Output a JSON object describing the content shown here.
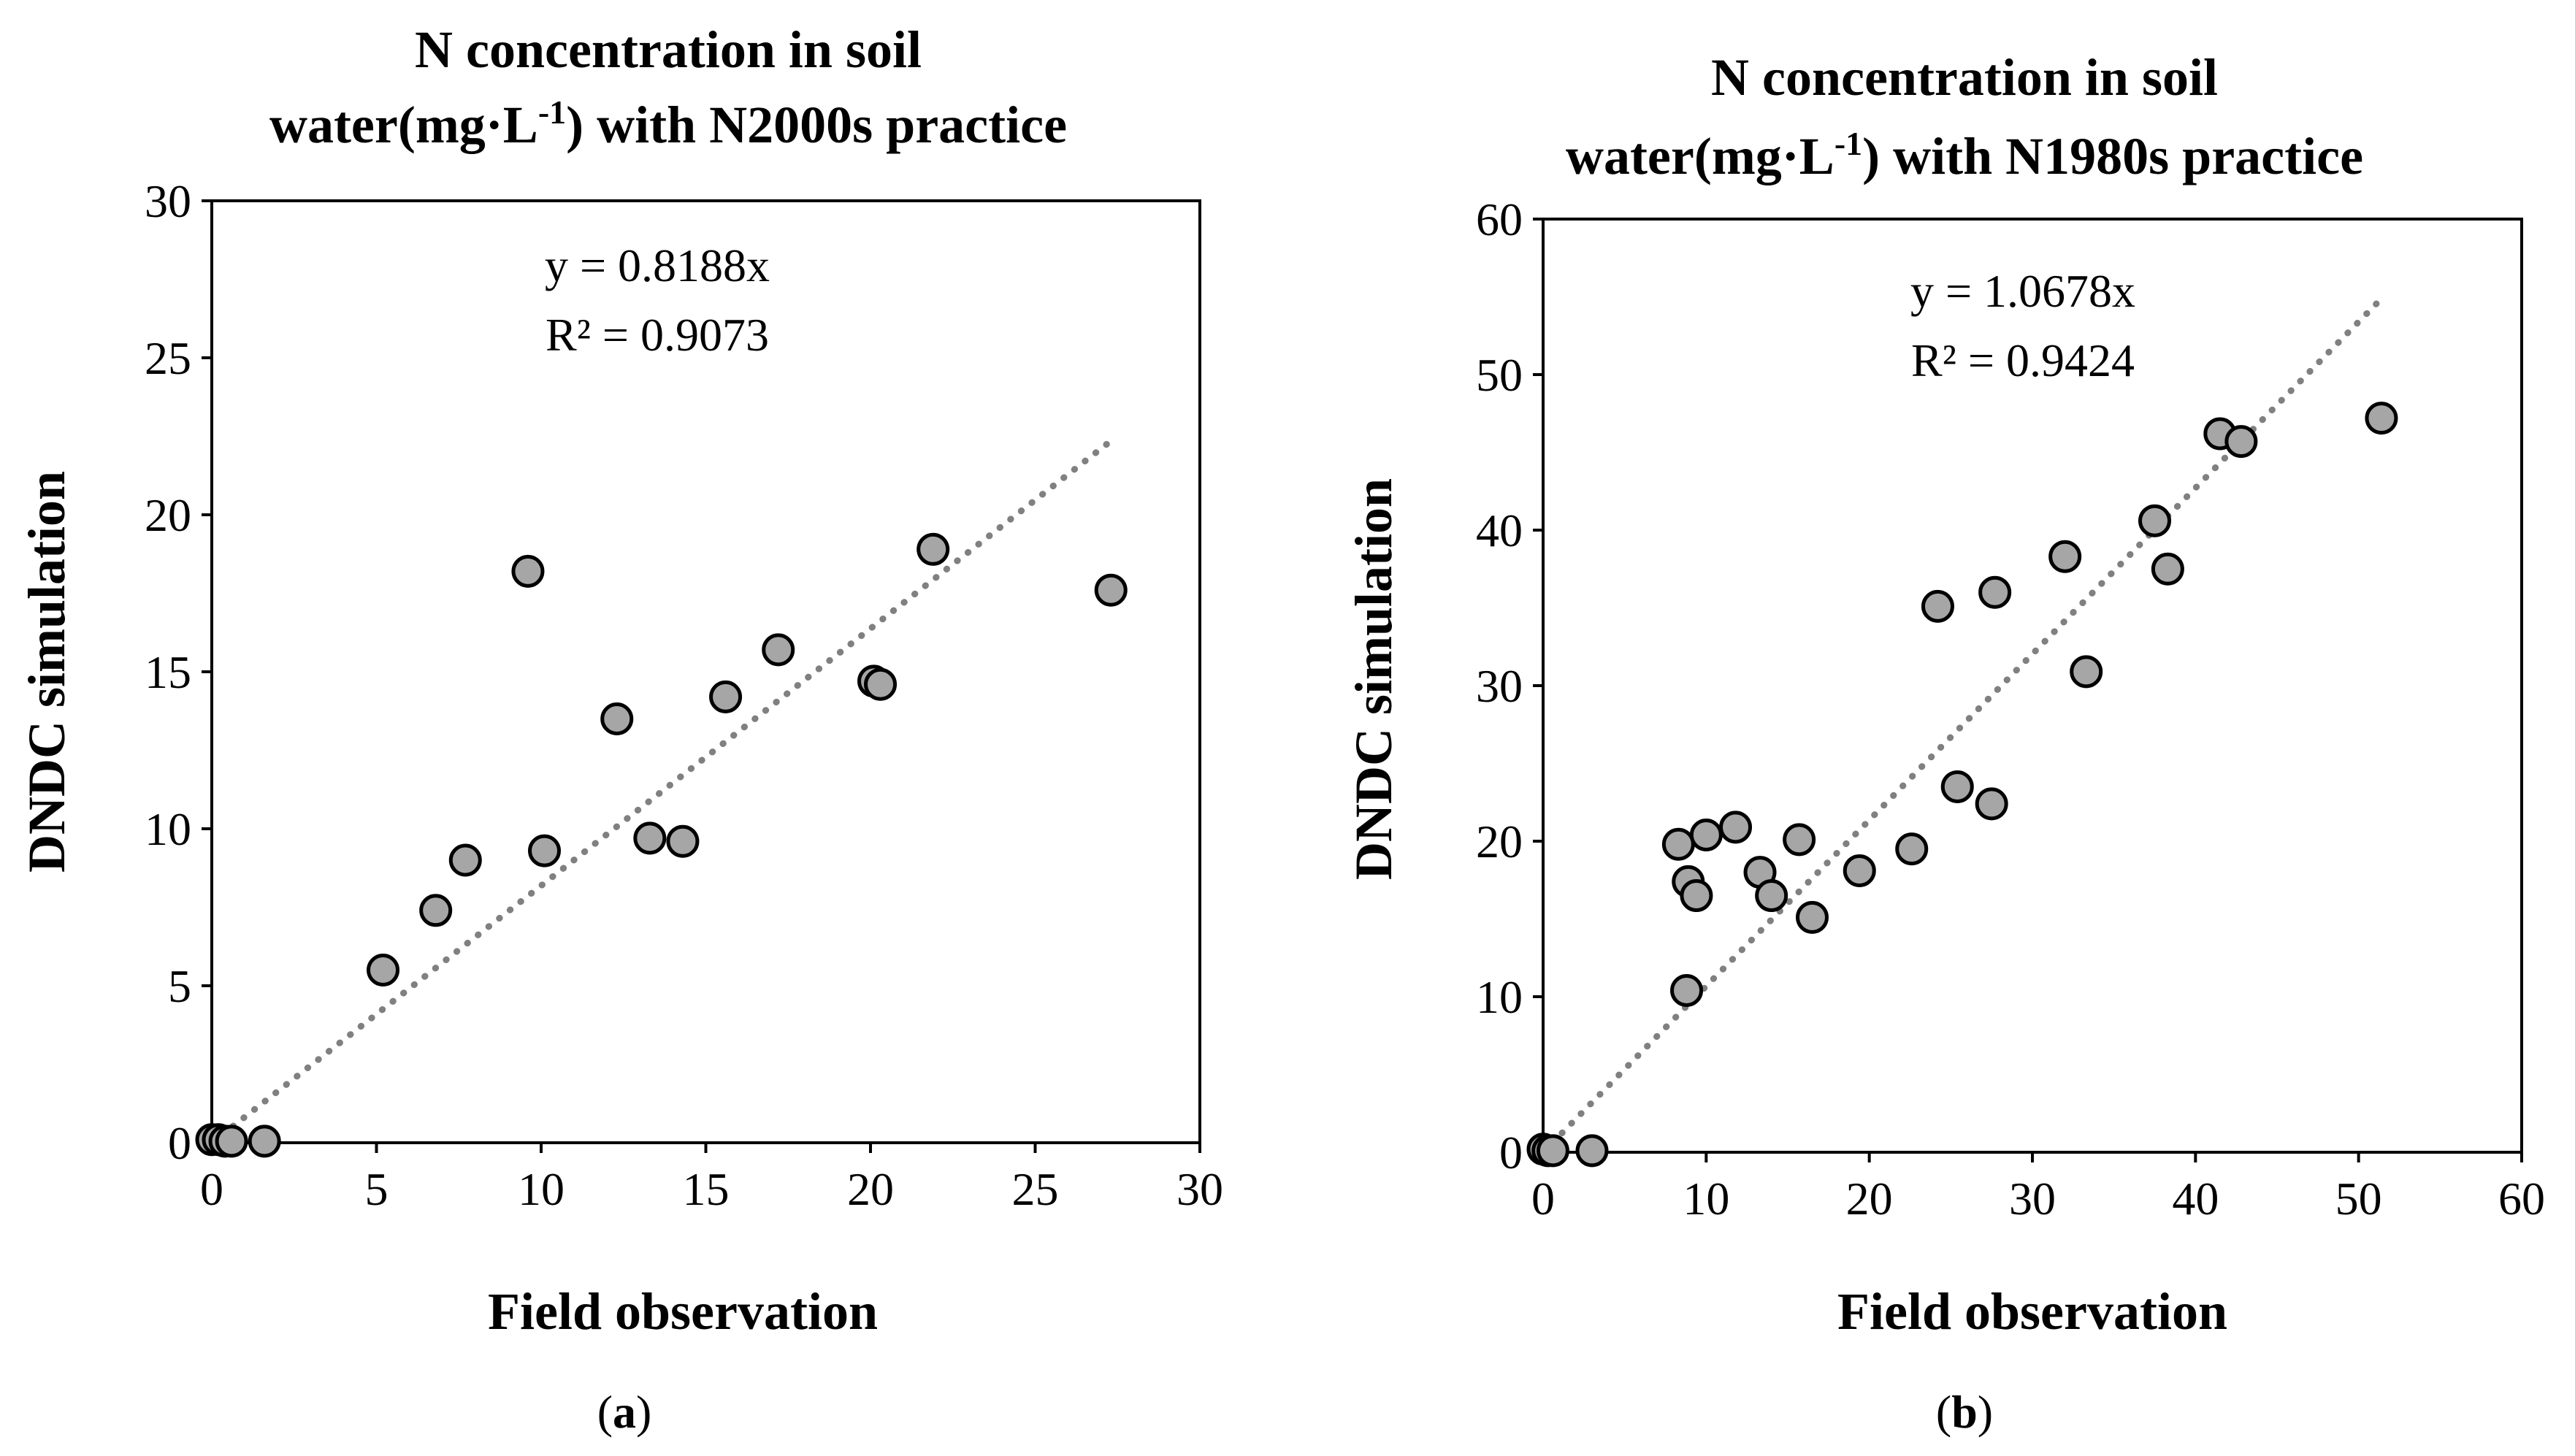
{
  "chart_data": [
    {
      "type": "scatter",
      "panel_label": "(a)",
      "panel_letter": "a",
      "title_line1": "N concentration in soil",
      "title_line2_pre": "water(mg·L",
      "title_line2_sup": "-1",
      "title_line2_post": ") with N2000s practice",
      "xlabel": "Field observation",
      "ylabel": "DNDC simulation",
      "xlim": [
        0,
        30
      ],
      "ylim": [
        0,
        30
      ],
      "xticks": [
        0,
        5,
        10,
        15,
        20,
        25,
        30
      ],
      "yticks": [
        0,
        5,
        10,
        15,
        20,
        25,
        30
      ],
      "equation": "y = 0.8188x",
      "r_squared": "R² = 0.9073",
      "trendline": {
        "slope": 0.8188,
        "x_range": [
          0,
          27.4
        ]
      },
      "marker_color": "#a6a6a6",
      "trend_color": "#808080",
      "points": [
        {
          "x": 0.0,
          "y": 0.1
        },
        {
          "x": 0.2,
          "y": 0.1
        },
        {
          "x": 0.4,
          "y": 0.05
        },
        {
          "x": 0.6,
          "y": 0.05
        },
        {
          "x": 1.6,
          "y": 0.05
        },
        {
          "x": 5.2,
          "y": 5.5
        },
        {
          "x": 6.8,
          "y": 7.4
        },
        {
          "x": 7.7,
          "y": 9.0
        },
        {
          "x": 9.6,
          "y": 18.2
        },
        {
          "x": 10.1,
          "y": 9.3
        },
        {
          "x": 12.3,
          "y": 13.5
        },
        {
          "x": 13.3,
          "y": 9.7
        },
        {
          "x": 14.3,
          "y": 9.6
        },
        {
          "x": 15.6,
          "y": 14.2
        },
        {
          "x": 17.2,
          "y": 15.7
        },
        {
          "x": 20.1,
          "y": 14.7
        },
        {
          "x": 20.3,
          "y": 14.6
        },
        {
          "x": 21.9,
          "y": 18.9
        },
        {
          "x": 27.3,
          "y": 17.6
        }
      ]
    },
    {
      "type": "scatter",
      "panel_label": "(b)",
      "panel_letter": "b",
      "title_line1": "N concentration in soil",
      "title_line2_pre": "water(mg·L",
      "title_line2_sup": "-1",
      "title_line2_post": ") with N1980s practice",
      "xlabel": "Field observation",
      "ylabel": "DNDC simulation",
      "xlim": [
        0,
        60
      ],
      "ylim": [
        0,
        60
      ],
      "xticks": [
        0,
        10,
        20,
        30,
        40,
        50,
        60
      ],
      "yticks": [
        0,
        10,
        20,
        30,
        40,
        50,
        60
      ],
      "equation": "y = 1.0678x",
      "r_squared": "R² = 0.9424",
      "trendline": {
        "slope": 1.0678,
        "x_range": [
          0,
          51.4
        ]
      },
      "marker_color": "#a6a6a6",
      "trend_color": "#808080",
      "points": [
        {
          "x": 0.0,
          "y": 0.2
        },
        {
          "x": 0.3,
          "y": 0.1
        },
        {
          "x": 0.6,
          "y": 0.1
        },
        {
          "x": 3.0,
          "y": 0.1
        },
        {
          "x": 8.3,
          "y": 19.8
        },
        {
          "x": 8.8,
          "y": 10.4
        },
        {
          "x": 8.9,
          "y": 17.4
        },
        {
          "x": 9.4,
          "y": 16.5
        },
        {
          "x": 10.0,
          "y": 20.4
        },
        {
          "x": 11.8,
          "y": 20.9
        },
        {
          "x": 13.3,
          "y": 18.0
        },
        {
          "x": 14.0,
          "y": 16.5
        },
        {
          "x": 15.7,
          "y": 20.1
        },
        {
          "x": 16.5,
          "y": 15.1
        },
        {
          "x": 19.4,
          "y": 18.1
        },
        {
          "x": 22.6,
          "y": 19.5
        },
        {
          "x": 24.2,
          "y": 35.1
        },
        {
          "x": 25.4,
          "y": 23.5
        },
        {
          "x": 27.5,
          "y": 22.4
        },
        {
          "x": 27.7,
          "y": 36.0
        },
        {
          "x": 32.0,
          "y": 38.3
        },
        {
          "x": 33.3,
          "y": 30.9
        },
        {
          "x": 37.5,
          "y": 40.6
        },
        {
          "x": 38.3,
          "y": 37.5
        },
        {
          "x": 41.5,
          "y": 46.2
        },
        {
          "x": 42.8,
          "y": 45.7
        },
        {
          "x": 51.4,
          "y": 47.2
        }
      ]
    }
  ]
}
